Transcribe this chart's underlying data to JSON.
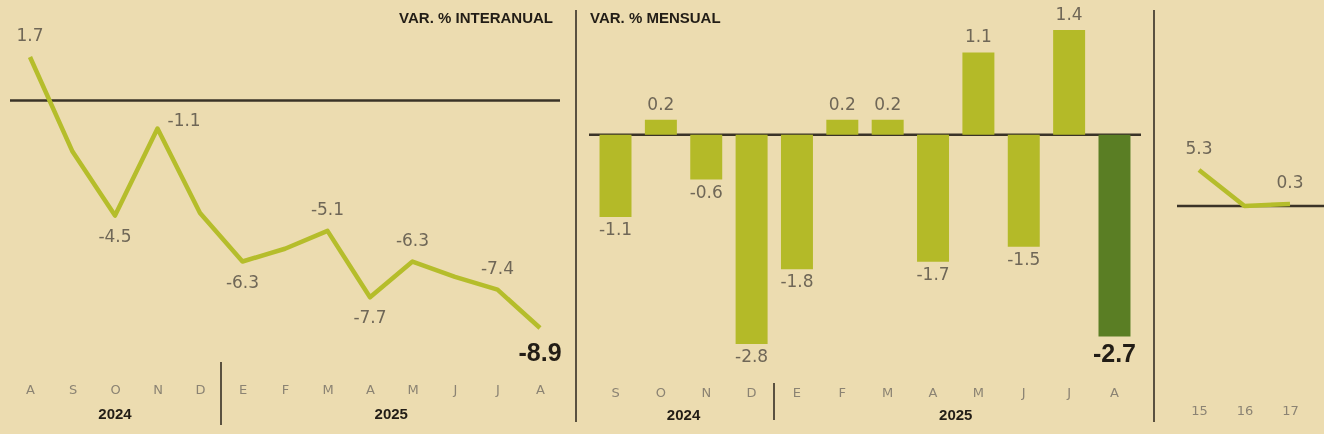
{
  "chart_data": [
    {
      "type": "line",
      "title": "VAR. % INTERANUAL",
      "categories": [
        "A",
        "S",
        "O",
        "N",
        "D",
        "E",
        "F",
        "M",
        "A",
        "M",
        "J",
        "J",
        "A"
      ],
      "values": [
        1.7,
        -2.0,
        -4.5,
        -1.1,
        -4.4,
        -6.3,
        -5.8,
        -5.1,
        -7.7,
        -6.3,
        -6.9,
        -7.4,
        -8.9
      ],
      "value_labels": [
        "1.7",
        null,
        "-4.5",
        "-1.1",
        null,
        "-6.3",
        null,
        "-5.1",
        "-7.7",
        "-6.3",
        null,
        "-7.4",
        "-8.9"
      ],
      "color": "#b5bd2b",
      "ref_lines": [
        {
          "axis": "y",
          "value": 0,
          "color": "#3a3327"
        }
      ],
      "annotations": [
        "2024",
        "2025"
      ],
      "tick_labels": "x"
    },
    {
      "type": "bar",
      "title": "VAR. % MENSUAL",
      "categories": [
        "S",
        "O",
        "N",
        "D",
        "E",
        "F",
        "M",
        "A",
        "M",
        "J",
        "J",
        "A"
      ],
      "values": [
        -1.1,
        0.2,
        -0.6,
        -2.8,
        -1.8,
        0.2,
        0.2,
        -1.7,
        1.1,
        -1.5,
        1.4,
        -2.7
      ],
      "colors": [
        "#b4ba28",
        "#b4ba28",
        "#b4ba28",
        "#b4ba28",
        "#b4ba28",
        "#b4ba28",
        "#b4ba28",
        "#b4ba28",
        "#b4ba28",
        "#b4ba28",
        "#b4ba28",
        "#5a7e24"
      ],
      "data_labels": true,
      "ref_lines": [
        {
          "axis": "y",
          "value": 0,
          "color": "#3a3327"
        }
      ],
      "annotations": [
        "2024",
        "2025"
      ],
      "tick_labels": "x"
    },
    {
      "type": "line",
      "categories": [
        "15",
        "16",
        "17"
      ],
      "values": [
        5.3,
        0,
        0.3
      ],
      "value_labels": [
        "5.3",
        null,
        "0.3"
      ],
      "color": "#b5bd2b",
      "ref_lines": [
        {
          "axis": "y",
          "value": 0,
          "color": "#3a3327"
        }
      ],
      "tick_labels": "x"
    }
  ]
}
